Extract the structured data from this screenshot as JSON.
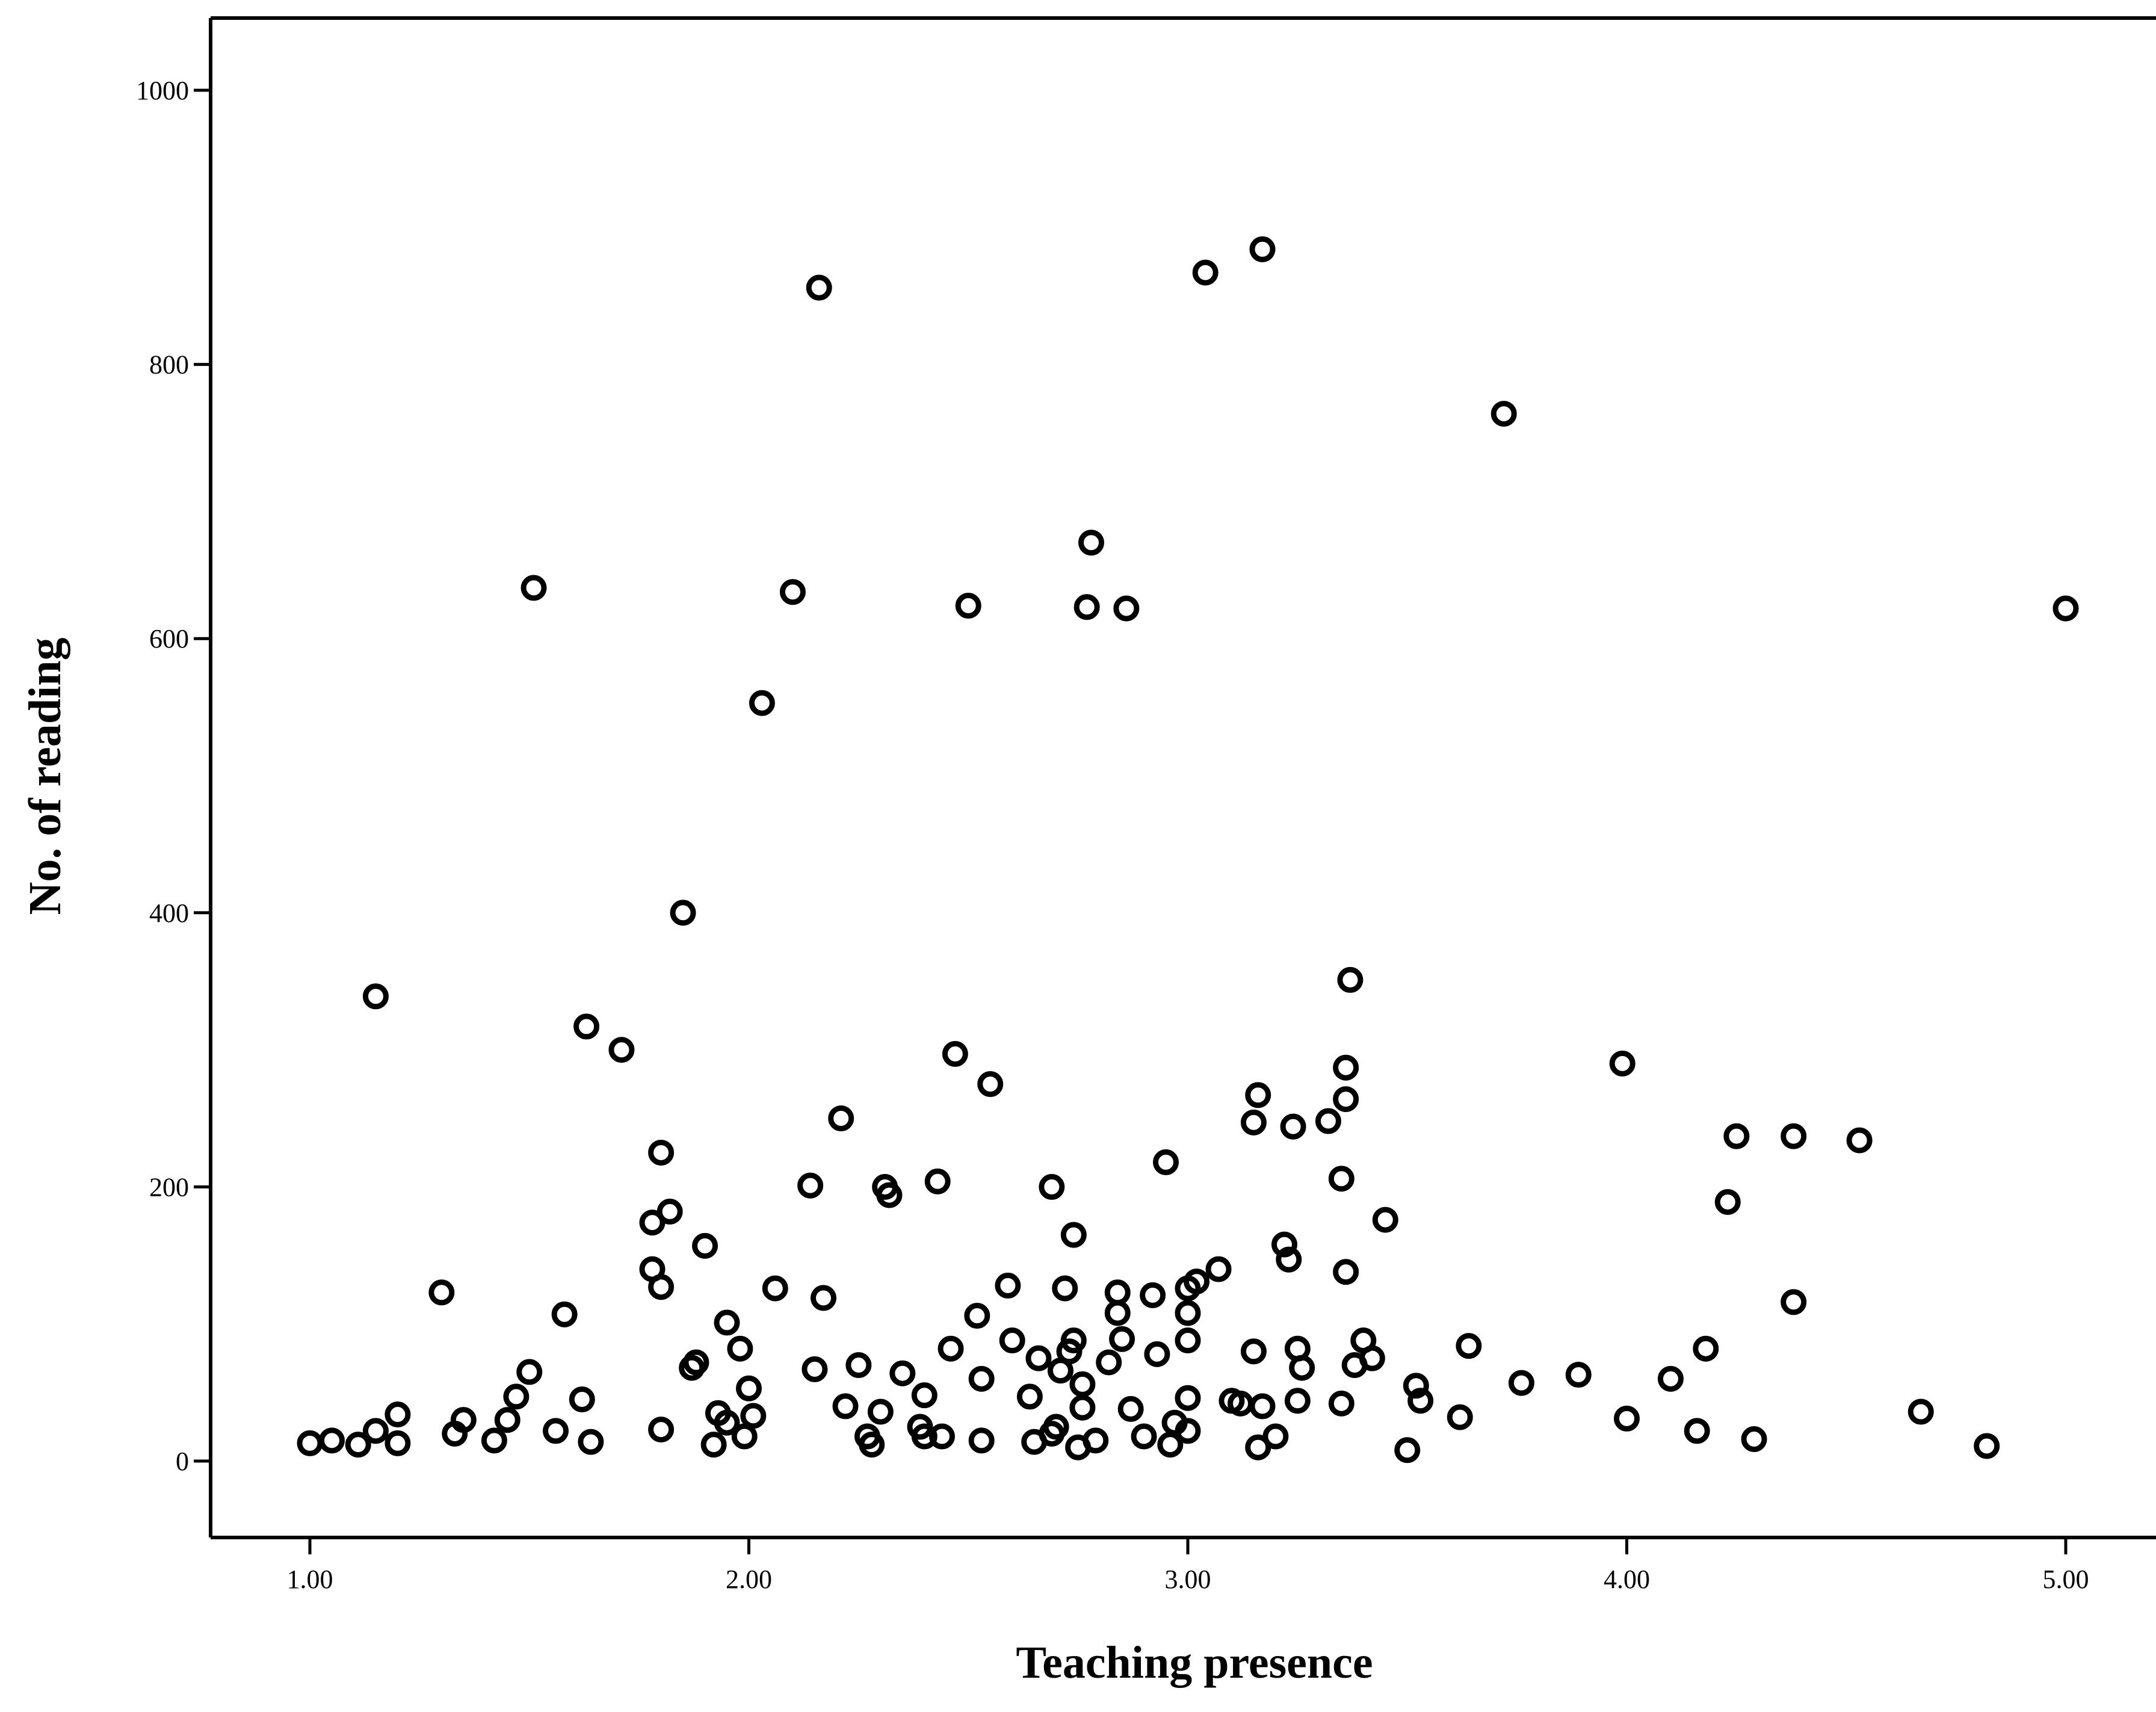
{
  "chart_data": {
    "type": "scatter",
    "title": "",
    "xlabel": "Teaching presence",
    "ylabel": "No. of reading",
    "xlim": [
      0.77,
      5.2
    ],
    "ylim": [
      -55,
      1055
    ],
    "x_ticks": [
      1,
      2,
      3,
      4,
      5
    ],
    "x_tick_labels": [
      "1.00",
      "2.00",
      "3.00",
      "4.00",
      "5.00"
    ],
    "y_ticks": [
      0,
      200,
      400,
      600,
      800,
      1000
    ],
    "y_tick_labels": [
      "0",
      "200",
      "400",
      "600",
      "800",
      "1000"
    ],
    "grid": false,
    "marker": "open-circle",
    "series": [
      {
        "points": [
          [
            1.0,
            13
          ],
          [
            1.05,
            15
          ],
          [
            1.11,
            12
          ],
          [
            1.15,
            22
          ],
          [
            1.2,
            13
          ],
          [
            1.2,
            34
          ],
          [
            1.15,
            339
          ],
          [
            1.33,
            20
          ],
          [
            1.35,
            30
          ],
          [
            1.3,
            123
          ],
          [
            1.42,
            15
          ],
          [
            1.45,
            30
          ],
          [
            1.47,
            47
          ],
          [
            1.5,
            65
          ],
          [
            1.51,
            637
          ],
          [
            1.56,
            22
          ],
          [
            1.58,
            107
          ],
          [
            1.62,
            45
          ],
          [
            1.63,
            317
          ],
          [
            1.64,
            14
          ],
          [
            1.71,
            300
          ],
          [
            1.78,
            140
          ],
          [
            1.78,
            174
          ],
          [
            1.8,
            127
          ],
          [
            1.8,
            225
          ],
          [
            1.8,
            23
          ],
          [
            1.82,
            182
          ],
          [
            1.85,
            400
          ],
          [
            1.87,
            68
          ],
          [
            1.88,
            72
          ],
          [
            1.9,
            157
          ],
          [
            1.92,
            12
          ],
          [
            1.93,
            35
          ],
          [
            1.95,
            101
          ],
          [
            1.95,
            28
          ],
          [
            1.98,
            82
          ],
          [
            1.99,
            18
          ],
          [
            2.0,
            53
          ],
          [
            2.01,
            33
          ],
          [
            2.03,
            553
          ],
          [
            2.06,
            126
          ],
          [
            2.1,
            634
          ],
          [
            2.14,
            201
          ],
          [
            2.15,
            67
          ],
          [
            2.16,
            856
          ],
          [
            2.17,
            119
          ],
          [
            2.21,
            250
          ],
          [
            2.22,
            40
          ],
          [
            2.25,
            70
          ],
          [
            2.27,
            18
          ],
          [
            2.28,
            12
          ],
          [
            2.3,
            36
          ],
          [
            2.31,
            200
          ],
          [
            2.32,
            194
          ],
          [
            2.35,
            64
          ],
          [
            2.39,
            25
          ],
          [
            2.4,
            18
          ],
          [
            2.4,
            48
          ],
          [
            2.43,
            204
          ],
          [
            2.44,
            18
          ],
          [
            2.46,
            82
          ],
          [
            2.47,
            297
          ],
          [
            2.5,
            624
          ],
          [
            2.52,
            106
          ],
          [
            2.53,
            60
          ],
          [
            2.53,
            15
          ],
          [
            2.55,
            275
          ],
          [
            2.59,
            128
          ],
          [
            2.6,
            88
          ],
          [
            2.64,
            47
          ],
          [
            2.65,
            14
          ],
          [
            2.66,
            75
          ],
          [
            2.69,
            200
          ],
          [
            2.69,
            20
          ],
          [
            2.7,
            25
          ],
          [
            2.71,
            66
          ],
          [
            2.72,
            126
          ],
          [
            2.73,
            80
          ],
          [
            2.74,
            88
          ],
          [
            2.74,
            165
          ],
          [
            2.75,
            10
          ],
          [
            2.76,
            56
          ],
          [
            2.76,
            39
          ],
          [
            2.77,
            623
          ],
          [
            2.78,
            670
          ],
          [
            2.79,
            15
          ],
          [
            2.82,
            72
          ],
          [
            2.84,
            123
          ],
          [
            2.84,
            108
          ],
          [
            2.85,
            89
          ],
          [
            2.86,
            622
          ],
          [
            2.87,
            38
          ],
          [
            2.9,
            18
          ],
          [
            2.92,
            121
          ],
          [
            2.93,
            78
          ],
          [
            2.95,
            218
          ],
          [
            2.96,
            12
          ],
          [
            2.97,
            28
          ],
          [
            3.0,
            88
          ],
          [
            3.0,
            126
          ],
          [
            3.0,
            108
          ],
          [
            3.0,
            46
          ],
          [
            3.0,
            22
          ],
          [
            3.02,
            131
          ],
          [
            3.04,
            867
          ],
          [
            3.07,
            140
          ],
          [
            3.1,
            44
          ],
          [
            3.12,
            42
          ],
          [
            3.15,
            80
          ],
          [
            3.15,
            247
          ],
          [
            3.16,
            267
          ],
          [
            3.16,
            10
          ],
          [
            3.17,
            884
          ],
          [
            3.17,
            40
          ],
          [
            3.2,
            18
          ],
          [
            3.22,
            158
          ],
          [
            3.23,
            147
          ],
          [
            3.24,
            244
          ],
          [
            3.25,
            82
          ],
          [
            3.25,
            44
          ],
          [
            3.26,
            68
          ],
          [
            3.32,
            248
          ],
          [
            3.35,
            42
          ],
          [
            3.35,
            206
          ],
          [
            3.36,
            287
          ],
          [
            3.36,
            264
          ],
          [
            3.36,
            138
          ],
          [
            3.37,
            351
          ],
          [
            3.38,
            70
          ],
          [
            3.4,
            88
          ],
          [
            3.42,
            75
          ],
          [
            3.45,
            176
          ],
          [
            3.5,
            8
          ],
          [
            3.52,
            55
          ],
          [
            3.53,
            44
          ],
          [
            3.62,
            32
          ],
          [
            3.64,
            84
          ],
          [
            3.72,
            764
          ],
          [
            3.76,
            57
          ],
          [
            3.89,
            63
          ],
          [
            3.99,
            290
          ],
          [
            4.0,
            31
          ],
          [
            4.1,
            60
          ],
          [
            4.16,
            22
          ],
          [
            4.18,
            82
          ],
          [
            4.23,
            189
          ],
          [
            4.25,
            237
          ],
          [
            4.29,
            16
          ],
          [
            4.38,
            237
          ],
          [
            4.38,
            116
          ],
          [
            4.53,
            234
          ],
          [
            4.67,
            36
          ],
          [
            4.82,
            11
          ],
          [
            5.0,
            622
          ]
        ]
      }
    ]
  }
}
